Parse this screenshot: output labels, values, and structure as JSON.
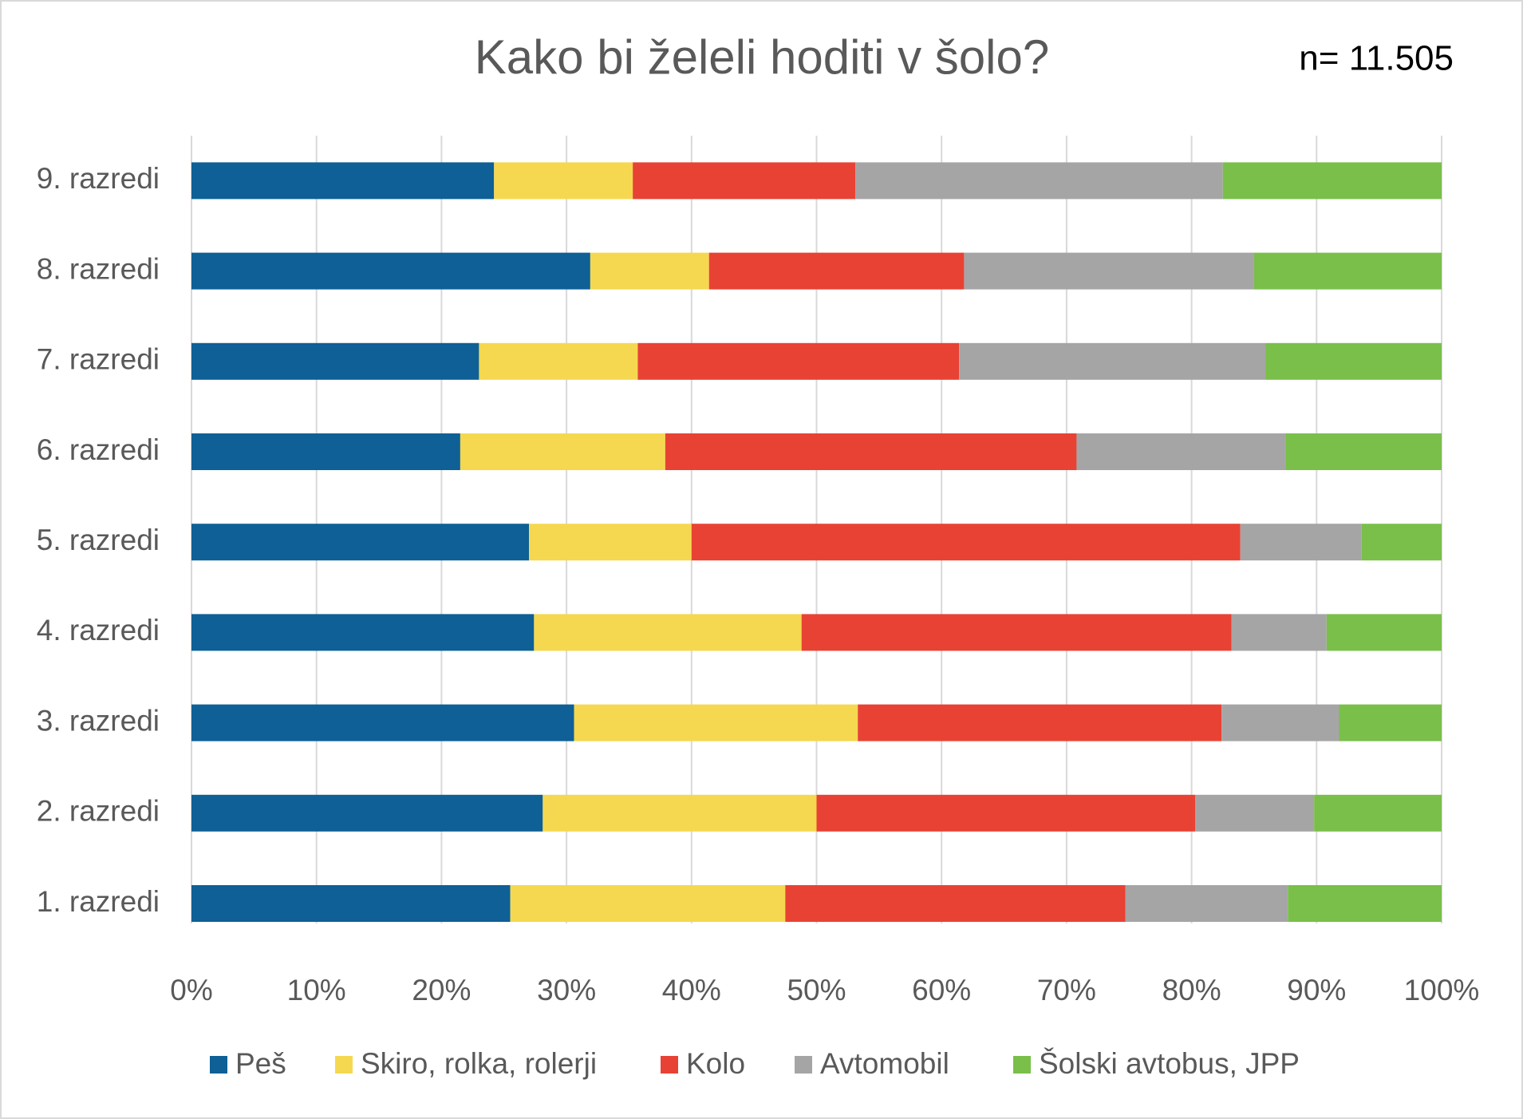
{
  "chart_data": {
    "type": "stacked-bar-horizontal",
    "title": "Kako bi želeli hoditi v šolo?",
    "annotation": "n= 11.505",
    "categories": [
      "9. razredi",
      "8. razredi",
      "7. razredi",
      "6. razredi",
      "5. razredi",
      "4. razredi",
      "3. razredi",
      "2. razredi",
      "1. razredi"
    ],
    "series": [
      {
        "name": "Peš",
        "color": "#0e6096",
        "values": [
          24.2,
          31.9,
          23.0,
          21.5,
          27.0,
          27.4,
          30.6,
          28.1,
          25.5
        ]
      },
      {
        "name": "Skiro, rolka, rolerji",
        "color": "#f5d84f",
        "values": [
          11.1,
          9.5,
          12.7,
          16.4,
          13.0,
          21.4,
          22.7,
          21.9,
          22.0
        ]
      },
      {
        "name": "Kolo",
        "color": "#e84234",
        "values": [
          17.8,
          20.4,
          25.7,
          32.9,
          43.9,
          34.4,
          29.1,
          30.3,
          27.2
        ]
      },
      {
        "name": "Avtomobil",
        "color": "#a5a5a5",
        "values": [
          29.4,
          23.2,
          24.5,
          16.7,
          9.7,
          7.6,
          9.4,
          9.5,
          13.0
        ]
      },
      {
        "name": "Šolski avtobus, JPP",
        "color": "#79bf4a",
        "values": [
          17.5,
          15.0,
          14.1,
          12.5,
          6.4,
          9.2,
          8.2,
          10.2,
          12.3
        ]
      }
    ],
    "xlim": [
      0,
      100
    ],
    "xticks": [
      {
        "value": 0,
        "label": "0%"
      },
      {
        "value": 10,
        "label": "10%"
      },
      {
        "value": 20,
        "label": "20%"
      },
      {
        "value": 30,
        "label": "30%"
      },
      {
        "value": 40,
        "label": "40%"
      },
      {
        "value": 50,
        "label": "50%"
      },
      {
        "value": 60,
        "label": "60%"
      },
      {
        "value": 70,
        "label": "70%"
      },
      {
        "value": 80,
        "label": "80%"
      },
      {
        "value": 90,
        "label": "90%"
      },
      {
        "value": 100,
        "label": "100%"
      }
    ],
    "grid": true,
    "legend": "bottom"
  }
}
